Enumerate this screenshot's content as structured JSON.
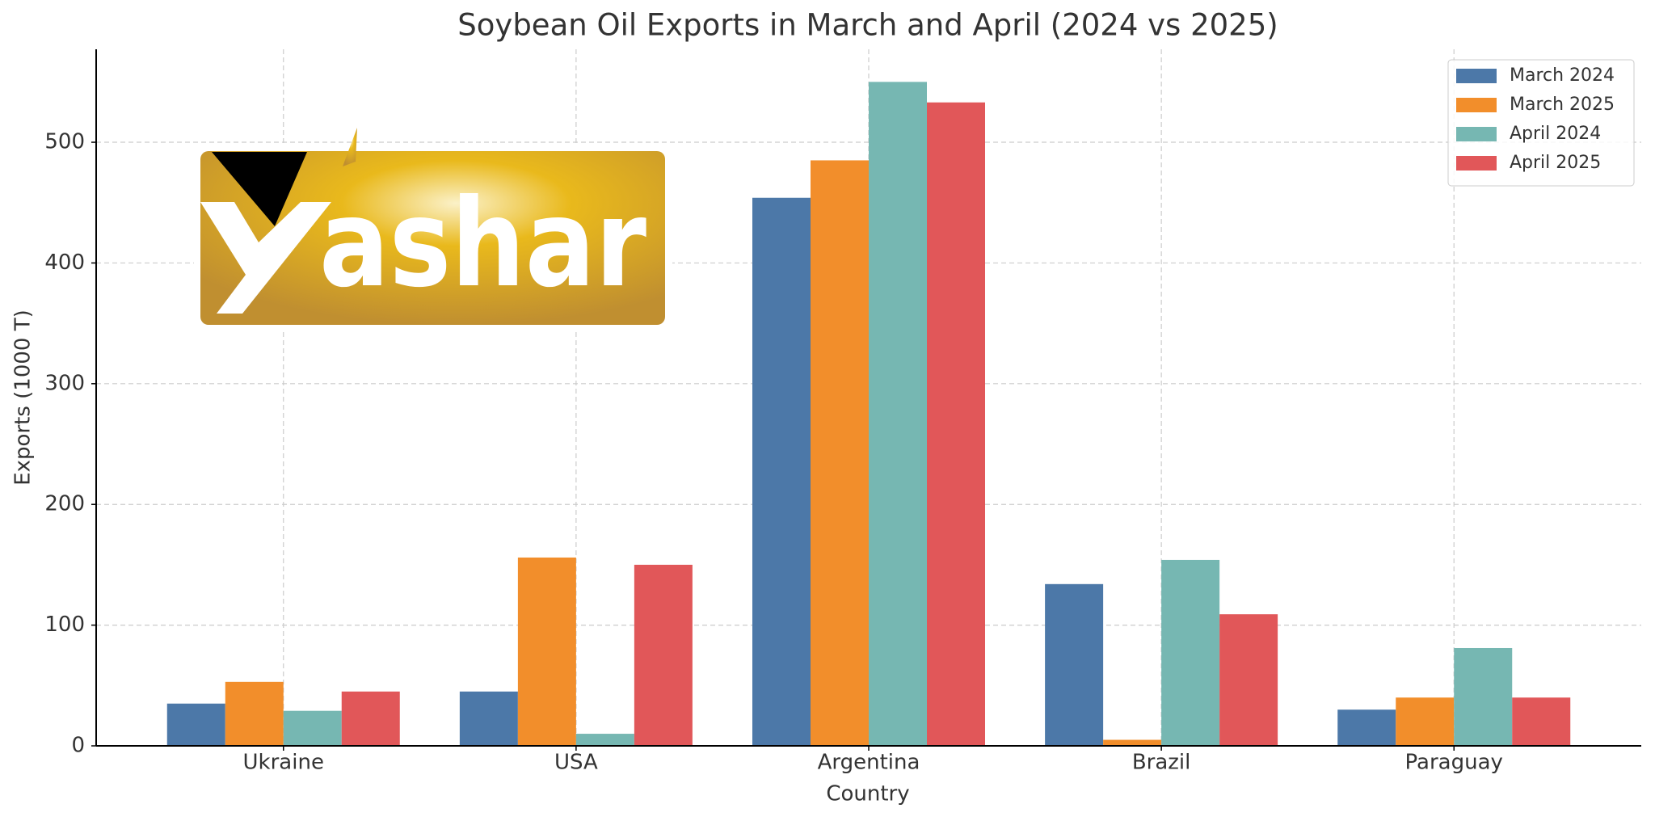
{
  "chart_data": {
    "type": "bar",
    "title": "Soybean Oil Exports in March and April (2024 vs 2025)",
    "x_label": "Country",
    "y_label": "Exports (1000 T)",
    "categories": [
      "Ukraine",
      "USA",
      "Argentina",
      "Brazil",
      "Paraguay"
    ],
    "series": [
      {
        "name": "March 2024",
        "color": "#4c78a8",
        "values": [
          35,
          45,
          454,
          134,
          30
        ]
      },
      {
        "name": "March 2025",
        "color": "#f28e2b",
        "values": [
          53,
          156,
          485,
          5,
          40
        ]
      },
      {
        "name": "April 2024",
        "color": "#76b7b2",
        "values": [
          29,
          10,
          550,
          154,
          81
        ]
      },
      {
        "name": "April 2025",
        "color": "#e15759",
        "values": [
          45,
          150,
          533,
          109,
          40
        ]
      }
    ],
    "ylim": [
      0,
      577
    ],
    "yticks": [
      0,
      100,
      200,
      300,
      400,
      500
    ],
    "grid": true,
    "legend": "upper right",
    "logo_text": "ashar"
  }
}
